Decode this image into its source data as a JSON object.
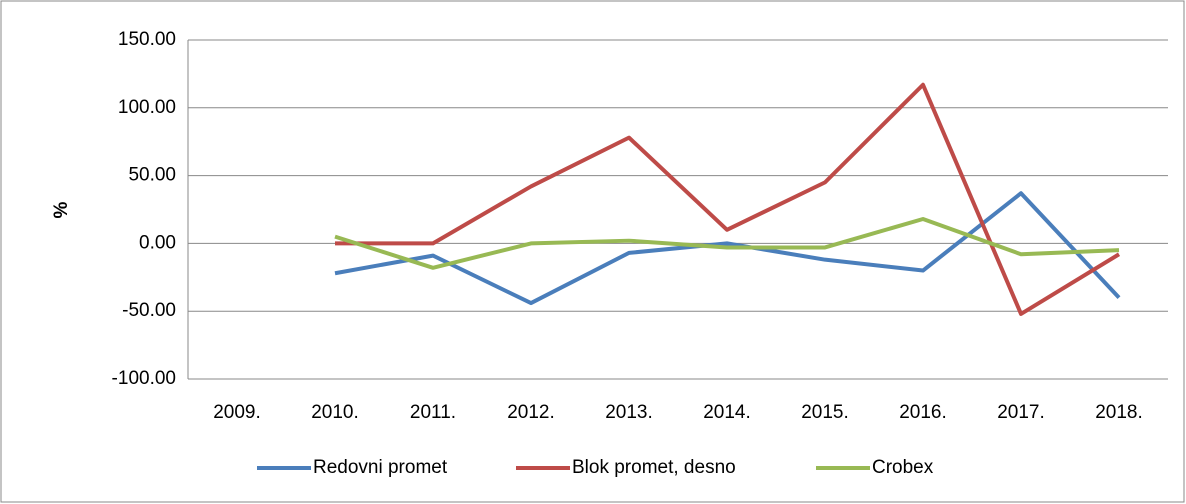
{
  "chart_data": {
    "type": "line",
    "y_label": "%",
    "categories": [
      "2009.",
      "2010.",
      "2011.",
      "2012.",
      "2013.",
      "2014.",
      "2015.",
      "2016.",
      "2017.",
      "2018."
    ],
    "series": [
      {
        "name": "Redovni promet",
        "color": "#4a7ebb",
        "values": [
          null,
          -22,
          -9,
          -44,
          -7,
          0,
          -12,
          -20,
          37,
          -40
        ]
      },
      {
        "name": "Blok promet, desno",
        "color": "#be4b48",
        "values": [
          null,
          0,
          0,
          42,
          78,
          10,
          45,
          117,
          -52,
          -8
        ]
      },
      {
        "name": "Crobex",
        "color": "#98b954",
        "values": [
          null,
          5,
          -18,
          0,
          2,
          -3,
          -3,
          18,
          -8,
          -5
        ]
      }
    ],
    "ylim": [
      -100,
      150
    ],
    "yticks": [
      {
        "value": -100,
        "label": "-100.00"
      },
      {
        "value": -50,
        "label": "-50.00"
      },
      {
        "value": 0,
        "label": "0.00"
      },
      {
        "value": 50,
        "label": "50.00"
      },
      {
        "value": 100,
        "label": "100.00"
      },
      {
        "value": 150,
        "label": "150.00"
      }
    ],
    "grid": true,
    "legend": "bottom"
  }
}
